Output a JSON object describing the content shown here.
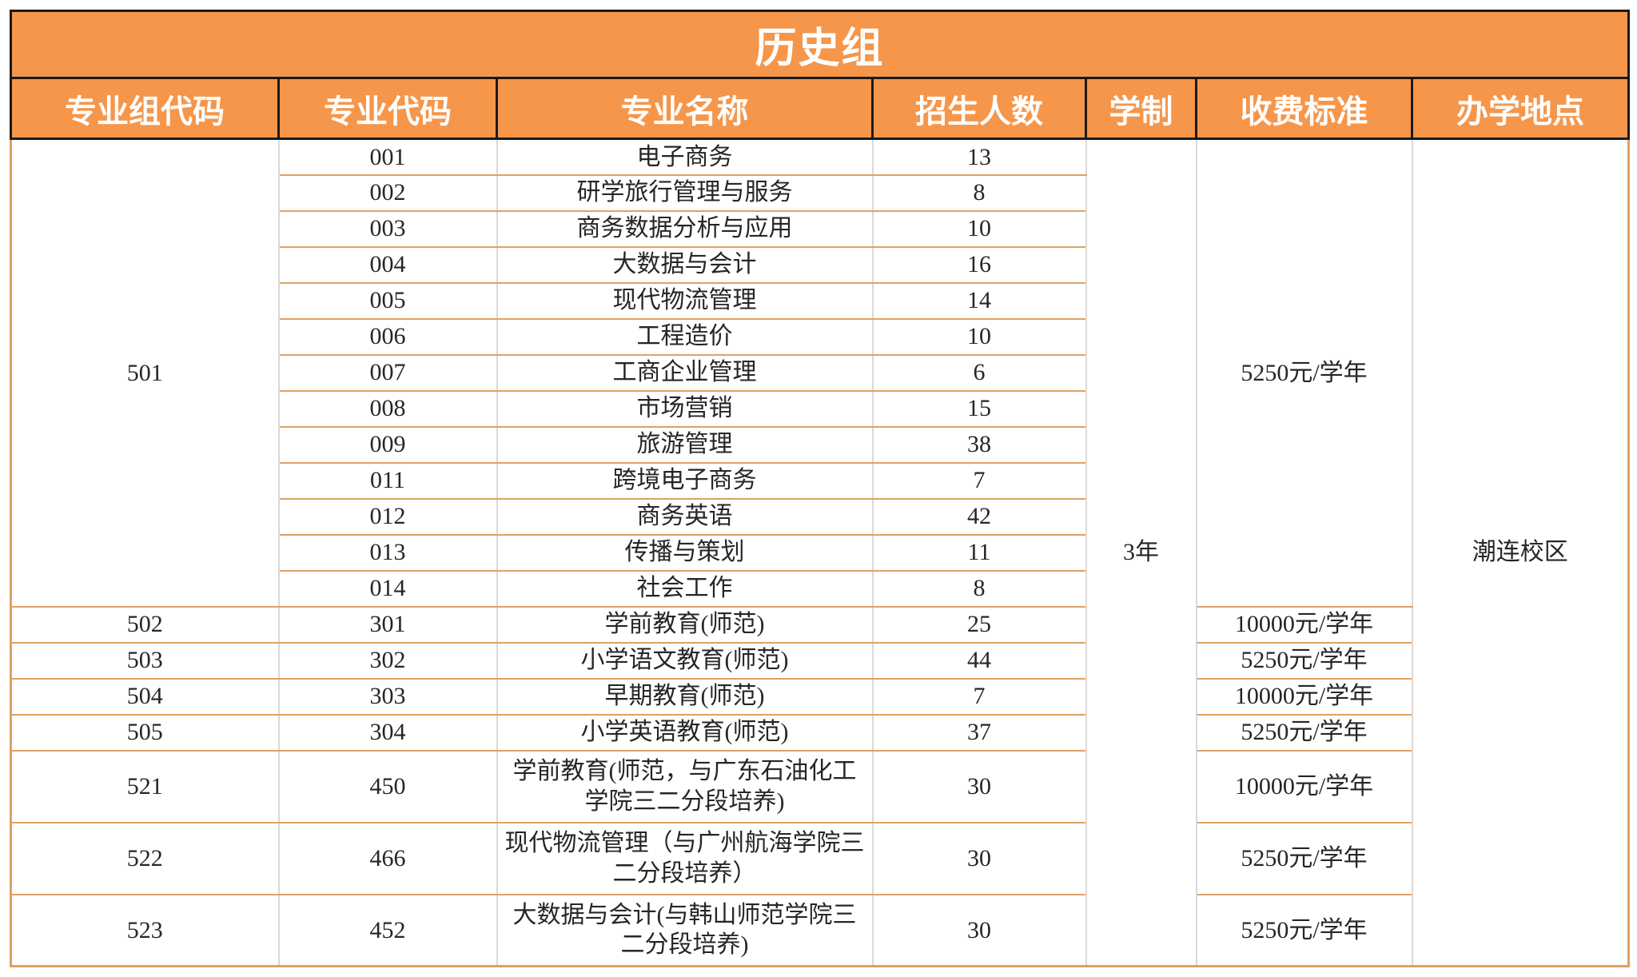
{
  "title": "历史组",
  "columns": [
    "专业组代码",
    "专业代码",
    "专业名称",
    "招生人数",
    "学制",
    "收费标准",
    "办学地点"
  ],
  "colors": {
    "header_bg": "#F5964B",
    "header_text": "#FFFFFF",
    "header_border": "#1A1A1A",
    "grid_horizontal": "#DFA164",
    "grid_vertical": "#D9D9D9",
    "outer_frame": "#DFA164",
    "body_text": "#262626"
  },
  "table": {
    "rows": [
      {
        "group": "501",
        "group_rowspan": 13,
        "code": "001",
        "name": "电子商务",
        "count": "13",
        "duration": "3年",
        "duration_rowspan": 20,
        "fee": "5250元/学年",
        "fee_rowspan": 13,
        "location": "潮连校区",
        "location_rowspan": 20
      },
      {
        "code": "002",
        "name": "研学旅行管理与服务",
        "count": "8"
      },
      {
        "code": "003",
        "name": "商务数据分析与应用",
        "count": "10"
      },
      {
        "code": "004",
        "name": "大数据与会计",
        "count": "16"
      },
      {
        "code": "005",
        "name": "现代物流管理",
        "count": "14"
      },
      {
        "code": "006",
        "name": "工程造价",
        "count": "10"
      },
      {
        "code": "007",
        "name": "工商企业管理",
        "count": "6"
      },
      {
        "code": "008",
        "name": "市场营销",
        "count": "15"
      },
      {
        "code": "009",
        "name": "旅游管理",
        "count": "38"
      },
      {
        "code": "011",
        "name": "跨境电子商务",
        "count": "7"
      },
      {
        "code": "012",
        "name": "商务英语",
        "count": "42"
      },
      {
        "code": "013",
        "name": "传播与策划",
        "count": "11"
      },
      {
        "code": "014",
        "name": "社会工作",
        "count": "8"
      },
      {
        "group": "502",
        "code": "301",
        "name": "学前教育(师范)",
        "count": "25",
        "fee": "10000元/学年"
      },
      {
        "group": "503",
        "code": "302",
        "name": "小学语文教育(师范)",
        "count": "44",
        "fee": "5250元/学年"
      },
      {
        "group": "504",
        "code": "303",
        "name": "早期教育(师范)",
        "count": "7",
        "fee": "10000元/学年"
      },
      {
        "group": "505",
        "code": "304",
        "name": "小学英语教育(师范)",
        "count": "37",
        "fee": "5250元/学年"
      },
      {
        "group": "521",
        "code": "450",
        "name": "学前教育(师范，与广东石油化工学院三二分段培养)",
        "count": "30",
        "fee": "10000元/学年",
        "tall": true
      },
      {
        "group": "522",
        "code": "466",
        "name": "现代物流管理（与广州航海学院三二分段培养）",
        "count": "30",
        "fee": "5250元/学年",
        "tall": true
      },
      {
        "group": "523",
        "code": "452",
        "name": "大数据与会计(与韩山师范学院三二分段培养)",
        "count": "30",
        "fee": "5250元/学年",
        "tall": true
      }
    ]
  }
}
